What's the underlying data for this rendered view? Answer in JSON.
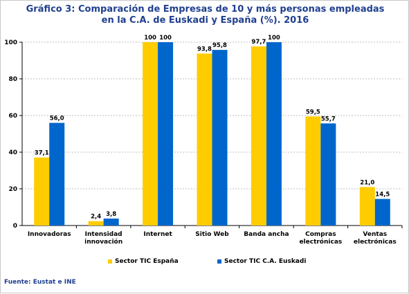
{
  "chart_data": {
    "type": "bar",
    "title_line1": "Gráfico 3: Comparación de Empresas de 10 y más personas empleadas",
    "title_line2": "en la C.A. de Euskadi y España (%). 2016",
    "categories": [
      [
        "Innovadoras"
      ],
      [
        "Intensidad",
        "innovación"
      ],
      [
        "Internet"
      ],
      [
        "Sitio Web"
      ],
      [
        "Banda ancha"
      ],
      [
        "Compras",
        "electrónicas"
      ],
      [
        "Ventas",
        "electrónicas"
      ]
    ],
    "series": [
      {
        "name": "Sector TIC España",
        "color": "#ffcc00",
        "values": [
          37.1,
          2.4,
          100,
          93.8,
          97.7,
          59.5,
          21.0
        ],
        "labels": [
          "37,1",
          "2,4",
          "100",
          "93,8",
          "97,7",
          "59,5",
          "21,0"
        ]
      },
      {
        "name": "Sector TIC C.A. Euskadi",
        "color": "#0066cc",
        "values": [
          56.0,
          3.8,
          100,
          95.8,
          100,
          55.7,
          14.5
        ],
        "labels": [
          "56,0",
          "3,8",
          "100",
          "95,8",
          "100",
          "55,7",
          "14,5"
        ]
      }
    ],
    "ylim": [
      0,
      100
    ],
    "yticks": [
      0,
      20,
      40,
      60,
      80,
      100
    ],
    "grid": true,
    "legend": "bottom"
  },
  "source": "Fuente: Eustat e INE"
}
